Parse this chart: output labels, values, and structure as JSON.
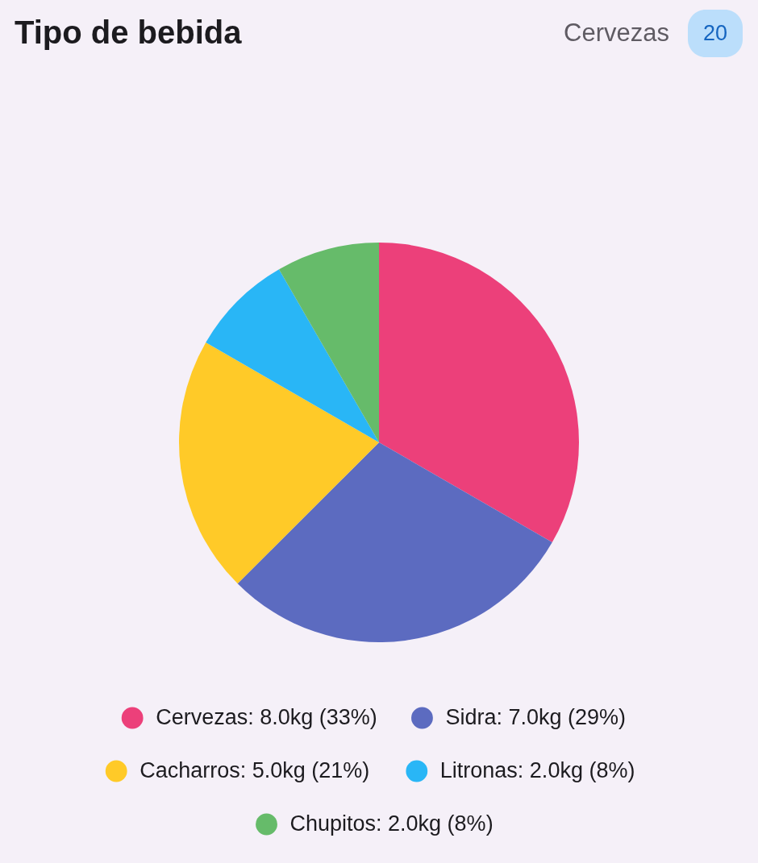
{
  "chart_data": {
    "type": "pie",
    "title": "Tipo de bebida",
    "categories": [
      "Cervezas: 8.0kg (33%)",
      "Sidra: 7.0kg (29%)",
      "Cacharros: 5.0kg (21%)",
      "Litronas: 2.0kg (8%)",
      "Chupitos: 2.0kg (8%)"
    ],
    "values": [
      8,
      7,
      5,
      2,
      2
    ],
    "colors": [
      "#ec407a",
      "#5c6bc0",
      "#ffca28",
      "#29b6f6",
      "#66bb6a"
    ],
    "legend": "bottom",
    "annotations": [
      "Cervezas",
      "20"
    ]
  }
}
